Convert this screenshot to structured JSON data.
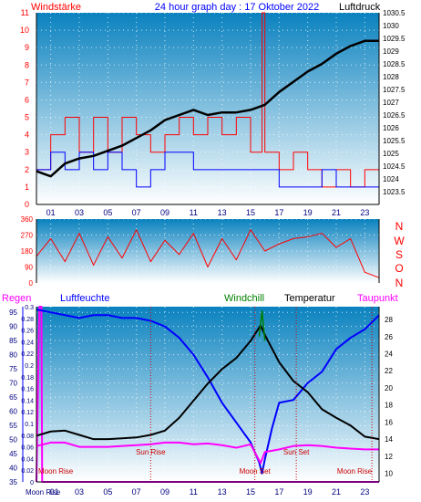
{
  "colors": {
    "wind": "#ff0000",
    "windDir": "#ff0000",
    "pressure": "#000000",
    "humidity": "#0000ff",
    "temperature": "#000000",
    "windchill": "#008000",
    "dewpoint": "#ff00ff",
    "gust": "#0000ff",
    "rain": "#ff00ff",
    "eventMarker": "#cc0000",
    "gridDot": "#ffffff",
    "plotTop": "#0a82bf",
    "plotBottom": "#ffffff"
  },
  "header": {
    "left": "Windstärke",
    "center": "24 hour graph day : 17 Oktober 2022",
    "right": "Luftdruck"
  },
  "legend2": {
    "n": "N",
    "w": "W",
    "s": "S",
    "o": "O",
    "n2": "N"
  },
  "legend3": {
    "rain": "Regen",
    "humidity": "Luftfeuchte",
    "windchill": "Windchill",
    "temperature": "Temperatur",
    "dewpoint": "Taupunkt"
  },
  "chart_data": [
    {
      "type": "line",
      "title": "24 hour graph day : 17 Oktober 2022",
      "xlabel": "",
      "ylabel_left": "Windstärke",
      "ylabel_right": "Luftdruck",
      "x_ticks": [
        "01",
        "03",
        "05",
        "07",
        "09",
        "11",
        "13",
        "15",
        "17",
        "19",
        "21",
        "23"
      ],
      "x_range_hours": [
        0,
        24
      ],
      "ylim_left": [
        0,
        11
      ],
      "ylim_right": [
        1023.0,
        1030.5
      ],
      "left_ticks": [
        "0",
        "1",
        "2",
        "3",
        "4",
        "5",
        "6",
        "7",
        "8",
        "9",
        "10",
        "11"
      ],
      "right_ticks": [
        "1023.5",
        "1024",
        "1024.5",
        "1025",
        "1025.5",
        "1026",
        "1026.5",
        "1027",
        "1027.5",
        "1028",
        "1028.5",
        "1029",
        "1029.5",
        "1030",
        "1030.5"
      ],
      "series": [
        {
          "name": "Luftdruck",
          "axis": "right",
          "points": [
            [
              0,
              1024.3
            ],
            [
              1,
              1024.1
            ],
            [
              2,
              1024.6
            ],
            [
              3,
              1024.8
            ],
            [
              4,
              1024.9
            ],
            [
              5,
              1025.1
            ],
            [
              6,
              1025.3
            ],
            [
              7,
              1025.6
            ],
            [
              8,
              1025.9
            ],
            [
              9,
              1026.3
            ],
            [
              10,
              1026.5
            ],
            [
              11,
              1026.7
            ],
            [
              12,
              1026.5
            ],
            [
              13,
              1026.6
            ],
            [
              14,
              1026.6
            ],
            [
              15,
              1026.7
            ],
            [
              16,
              1026.9
            ],
            [
              17,
              1027.4
            ],
            [
              18,
              1027.8
            ],
            [
              19,
              1028.2
            ],
            [
              20,
              1028.5
            ],
            [
              21,
              1028.9
            ],
            [
              22,
              1029.2
            ],
            [
              23,
              1029.4
            ],
            [
              24,
              1029.4
            ]
          ]
        },
        {
          "name": "Windstärke",
          "axis": "left",
          "points": [
            [
              0,
              2
            ],
            [
              1,
              4
            ],
            [
              2,
              5
            ],
            [
              3,
              3
            ],
            [
              4,
              5
            ],
            [
              5,
              3
            ],
            [
              6,
              5
            ],
            [
              7,
              4
            ],
            [
              8,
              3
            ],
            [
              9,
              4
            ],
            [
              10,
              5
            ],
            [
              11,
              4
            ],
            [
              12,
              5
            ],
            [
              13,
              4
            ],
            [
              14,
              5
            ],
            [
              15,
              3
            ],
            [
              15.8,
              11
            ],
            [
              16,
              3
            ],
            [
              17,
              2
            ],
            [
              18,
              3
            ],
            [
              19,
              2
            ],
            [
              20,
              1
            ],
            [
              21,
              2
            ],
            [
              22,
              1
            ],
            [
              23,
              2
            ],
            [
              24,
              2
            ]
          ]
        },
        {
          "name": "",
          "axis": "left",
          "points": [
            [
              0,
              2
            ],
            [
              1,
              3
            ],
            [
              2,
              2
            ],
            [
              3,
              3
            ],
            [
              4,
              2
            ],
            [
              5,
              3
            ],
            [
              6,
              2
            ],
            [
              7,
              1
            ],
            [
              8,
              2
            ],
            [
              9,
              3
            ],
            [
              10,
              3
            ],
            [
              11,
              2
            ],
            [
              12,
              2
            ],
            [
              13,
              2
            ],
            [
              14,
              2
            ],
            [
              15,
              2
            ],
            [
              16,
              2
            ],
            [
              17,
              1
            ],
            [
              18,
              1
            ],
            [
              19,
              1
            ],
            [
              20,
              2
            ],
            [
              21,
              1
            ],
            [
              22,
              1
            ],
            [
              23,
              1
            ],
            [
              24,
              1
            ]
          ]
        }
      ]
    },
    {
      "type": "line",
      "title": "",
      "xlabel": "",
      "ylabel_right": "N W S O N",
      "x_range_hours": [
        0,
        24
      ],
      "ylim": [
        0,
        360
      ],
      "left_ticks": [
        "0",
        "90",
        "180",
        "270",
        "360"
      ],
      "series": [
        {
          "name": "",
          "points": [
            [
              0,
              150
            ],
            [
              1,
              250
            ],
            [
              2,
              120
            ],
            [
              3,
              280
            ],
            [
              4,
              100
            ],
            [
              5,
              260
            ],
            [
              6,
              140
            ],
            [
              7,
              300
            ],
            [
              8,
              120
            ],
            [
              9,
              240
            ],
            [
              10,
              160
            ],
            [
              11,
              280
            ],
            [
              12,
              90
            ],
            [
              13,
              250
            ],
            [
              14,
              130
            ],
            [
              15,
              300
            ],
            [
              16,
              180
            ],
            [
              17,
              220
            ],
            [
              18,
              250
            ],
            [
              19,
              260
            ],
            [
              20,
              280
            ],
            [
              21,
              200
            ],
            [
              22,
              250
            ],
            [
              23,
              60
            ],
            [
              24,
              30
            ]
          ]
        }
      ]
    },
    {
      "type": "line",
      "title": "",
      "xlabel": "",
      "x_ticks": [
        "Moon Rise",
        "01",
        "03",
        "05",
        "07",
        "09",
        "11",
        "13",
        "15",
        "17",
        "19",
        "21",
        "23"
      ],
      "x_range_hours": [
        0,
        24
      ],
      "ylim_humidity": [
        35,
        97
      ],
      "ylim_rain": [
        0,
        0.3
      ],
      "ylim_temperature": [
        9,
        29.5
      ],
      "humidity_ticks": [
        "35",
        "40",
        "45",
        "50",
        "55",
        "60",
        "65",
        "70",
        "75",
        "80",
        "85",
        "90",
        "95"
      ],
      "rain_ticks": [
        "0",
        "0.02",
        "0.04",
        "0.06",
        "0.08",
        "0.1",
        "0.12",
        "0.14",
        "0.16",
        "0.18",
        "0.2",
        "0.22",
        "0.24",
        "0.26",
        "0.28",
        "0.3"
      ],
      "temperature_ticks": [
        "10",
        "12",
        "14",
        "16",
        "18",
        "20",
        "22",
        "24",
        "26",
        "28"
      ],
      "events": [
        {
          "label": "Moon Rise",
          "hour": 0.0
        },
        {
          "label": "Sun Rise",
          "hour": 8.0
        },
        {
          "label": "Moon Set",
          "hour": 15.3
        },
        {
          "label": "Sun Set",
          "hour": 18.2
        },
        {
          "label": "Moon Rise",
          "hour": 23.5
        }
      ],
      "series": [
        {
          "name": "Luftfeuchte",
          "axis": "humidity",
          "points": [
            [
              0,
              96
            ],
            [
              1,
              95
            ],
            [
              2,
              94
            ],
            [
              3,
              93
            ],
            [
              4,
              94
            ],
            [
              5,
              94
            ],
            [
              6,
              93
            ],
            [
              7,
              93
            ],
            [
              8,
              92
            ],
            [
              9,
              90
            ],
            [
              10,
              86
            ],
            [
              11,
              80
            ],
            [
              12,
              72
            ],
            [
              13,
              63
            ],
            [
              14,
              56
            ],
            [
              15,
              49
            ],
            [
              15.6,
              42
            ],
            [
              15.8,
              38
            ],
            [
              16,
              43
            ],
            [
              16.5,
              54
            ],
            [
              17,
              63
            ],
            [
              18,
              64
            ],
            [
              19,
              70
            ],
            [
              20,
              74
            ],
            [
              21,
              82
            ],
            [
              22,
              86
            ],
            [
              23,
              89
            ],
            [
              24,
              94
            ]
          ]
        },
        {
          "name": "Temperatur",
          "axis": "temperature",
          "points": [
            [
              0,
              14.4
            ],
            [
              1,
              14.9
            ],
            [
              2,
              15.0
            ],
            [
              3,
              14.5
            ],
            [
              4,
              14.0
            ],
            [
              5,
              14.0
            ],
            [
              6,
              14.1
            ],
            [
              7,
              14.2
            ],
            [
              8,
              14.5
            ],
            [
              9,
              15.0
            ],
            [
              10,
              16.5
            ],
            [
              11,
              18.5
            ],
            [
              12,
              20.5
            ],
            [
              13,
              22.2
            ],
            [
              14,
              23.5
            ],
            [
              15,
              25.5
            ],
            [
              15.7,
              27.3
            ],
            [
              16,
              26.2
            ],
            [
              17,
              23.0
            ],
            [
              18,
              20.8
            ],
            [
              19,
              19.5
            ],
            [
              20,
              17.5
            ],
            [
              21,
              16.5
            ],
            [
              22,
              15.6
            ],
            [
              23,
              14.3
            ],
            [
              24,
              14.0
            ]
          ]
        },
        {
          "name": "Windchill",
          "axis": "temperature",
          "points": [
            [
              15.6,
              26.0
            ],
            [
              15.8,
              29.0
            ],
            [
              16.0,
              25.5
            ]
          ]
        },
        {
          "name": "Taupunkt",
          "axis": "temperature",
          "points": [
            [
              0,
              13.2
            ],
            [
              1,
              13.6
            ],
            [
              2,
              13.6
            ],
            [
              3,
              13.1
            ],
            [
              4,
              13.1
            ],
            [
              5,
              13.1
            ],
            [
              6,
              13.2
            ],
            [
              7,
              13.3
            ],
            [
              8,
              13.4
            ],
            [
              9,
              13.6
            ],
            [
              10,
              13.6
            ],
            [
              11,
              13.4
            ],
            [
              12,
              13.5
            ],
            [
              13,
              13.3
            ],
            [
              14,
              13.0
            ],
            [
              15,
              13.4
            ],
            [
              15.7,
              11.2
            ],
            [
              16,
              12.5
            ],
            [
              17,
              12.8
            ],
            [
              18,
              13.2
            ],
            [
              19,
              13.3
            ],
            [
              20,
              13.2
            ],
            [
              21,
              13.0
            ],
            [
              22,
              12.9
            ],
            [
              23,
              12.8
            ],
            [
              24,
              12.8
            ]
          ]
        },
        {
          "name": "Regen",
          "axis": "rain",
          "points": [
            [
              0,
              0
            ],
            [
              0.2,
              0.3
            ],
            [
              0.35,
              0.3
            ],
            [
              0.4,
              0
            ],
            [
              24,
              0
            ]
          ]
        }
      ]
    }
  ]
}
